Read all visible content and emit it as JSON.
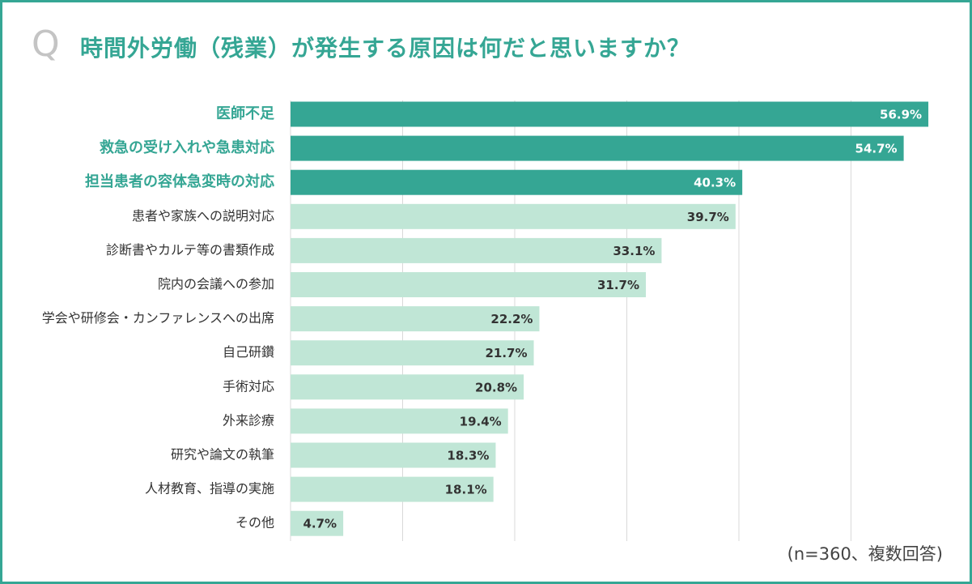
{
  "question": {
    "mark": "Q",
    "title": "時間外労働（残業）が発生する原因は何だと思いますか？"
  },
  "note": "(n=360、複数回答)",
  "colors": {
    "frame": "#35a694",
    "highlight_bar": "#35a694",
    "normal_bar": "#c0e6d6",
    "highlight_label": "#35a694",
    "normal_label": "#333333",
    "highlight_value": "#ffffff",
    "normal_value": "#333333",
    "grid": "#d9d9d9"
  },
  "chart_data": {
    "type": "bar",
    "orientation": "horizontal",
    "title": "時間外労働（残業）が発生する原因は何だと思いますか？",
    "xlabel": "",
    "ylabel": "",
    "xlim": [
      0,
      50
    ],
    "grid": true,
    "categories": [
      "医師不足",
      "救急の受け入れや急患対応",
      "担当患者の容体急変時の対応",
      "患者や家族への説明対応",
      "診断書やカルテ等の書類作成",
      "院内の会議への参加",
      "学会や研修会・カンファレンスへの出席",
      "自己研鑽",
      "手術対応",
      "外来診療",
      "研究や論文の執筆",
      "人材教育、指導の実施",
      "その他"
    ],
    "values": [
      56.9,
      54.7,
      40.3,
      39.7,
      33.1,
      31.7,
      22.2,
      21.7,
      20.8,
      19.4,
      18.3,
      18.1,
      4.7
    ],
    "value_labels": [
      "56.9%",
      "54.7%",
      "40.3%",
      "39.7%",
      "33.1%",
      "31.7%",
      "22.2%",
      "21.7%",
      "20.8%",
      "19.4%",
      "18.3%",
      "18.1%",
      "4.7%"
    ],
    "highlighted": [
      true,
      true,
      true,
      false,
      false,
      false,
      false,
      false,
      false,
      false,
      false,
      false,
      false
    ]
  }
}
